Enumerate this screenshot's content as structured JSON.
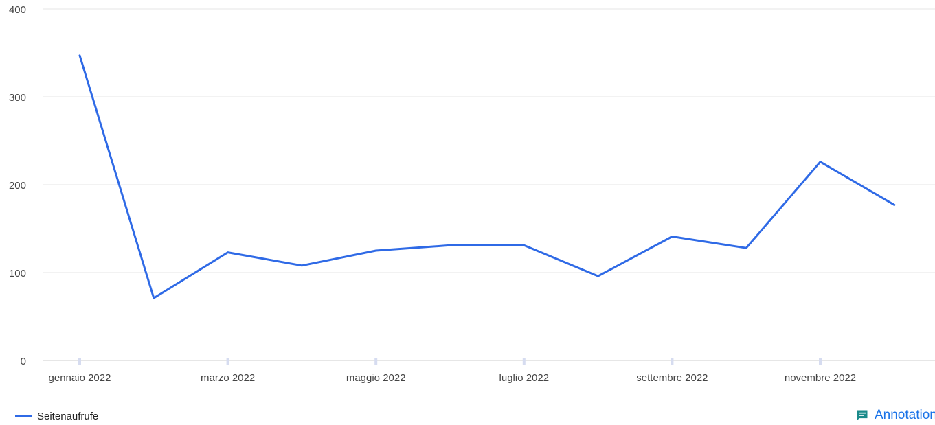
{
  "chart_data": {
    "type": "line",
    "x": [
      "gennaio 2022",
      "febbraio 2022",
      "marzo 2022",
      "aprile 2022",
      "maggio 2022",
      "giugno 2022",
      "luglio 2022",
      "agosto 2022",
      "settembre 2022",
      "ottobre 2022",
      "novembre 2022",
      "dicembre 2022"
    ],
    "x_tick_labels": [
      "gennaio 2022",
      "marzo 2022",
      "maggio 2022",
      "luglio 2022",
      "settembre 2022",
      "novembre 2022"
    ],
    "series": [
      {
        "name": "Seitenaufrufe",
        "values": [
          347,
          71,
          123,
          108,
          125,
          131,
          131,
          96,
          141,
          128,
          226,
          177
        ]
      }
    ],
    "ylim": [
      0,
      400
    ],
    "y_ticks": [
      0,
      100,
      200,
      300,
      400
    ],
    "grid": true,
    "legend_position": "bottom-left",
    "colors": {
      "line": "#2f6ae6",
      "grid": "#e6e6e6",
      "tick": "#d6dcf0"
    }
  },
  "legend": {
    "label": "Seitenaufrufe"
  },
  "annotations_button": {
    "label": "Annotations",
    "icon": "comment-icon",
    "color": "#1a73e8"
  }
}
